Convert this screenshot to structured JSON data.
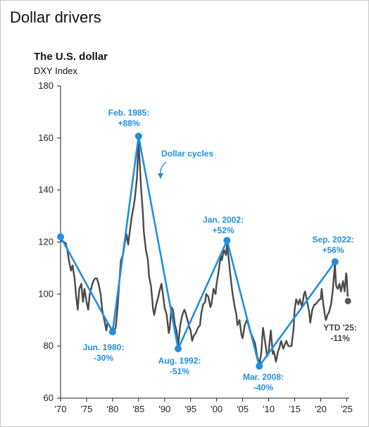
{
  "page_title": "Dollar drivers",
  "chart_data": {
    "type": "line",
    "title": "The U.S. dollar",
    "subtitle": "DXY Index",
    "xlabel": "",
    "ylabel": "",
    "xlim": [
      1970,
      2025.5
    ],
    "ylim": [
      60,
      180
    ],
    "grid": false,
    "y_ticks": [
      60,
      80,
      100,
      120,
      140,
      160,
      180
    ],
    "x_ticks": [
      {
        "value": 1970,
        "label": "'70"
      },
      {
        "value": 1975,
        "label": "'75"
      },
      {
        "value": 1980,
        "label": "'80"
      },
      {
        "value": 1985,
        "label": "'85"
      },
      {
        "value": 1990,
        "label": "'90"
      },
      {
        "value": 1995,
        "label": "'95"
      },
      {
        "value": 2000,
        "label": "'00"
      },
      {
        "value": 2005,
        "label": "'05"
      },
      {
        "value": 2010,
        "label": "'10"
      },
      {
        "value": 2015,
        "label": "'15"
      },
      {
        "value": 2020,
        "label": "'20"
      },
      {
        "value": 2025,
        "label": "'25"
      }
    ],
    "colors": {
      "index": "#4a4a4a",
      "cycles": "#1f8fe0",
      "ytd_marker": "#555555"
    },
    "series": [
      {
        "name": "",
        "color": "#4a4a4a",
        "points": [
          [
            1970.0,
            120.5
          ],
          [
            1970.5,
            120.2
          ],
          [
            1971.0,
            119.5
          ],
          [
            1971.3,
            117.0
          ],
          [
            1971.6,
            113.0
          ],
          [
            1972.0,
            109.0
          ],
          [
            1972.3,
            111.0
          ],
          [
            1972.7,
            106.0
          ],
          [
            1973.0,
            99.0
          ],
          [
            1973.3,
            94.0
          ],
          [
            1973.6,
            102.0
          ],
          [
            1974.0,
            104.0
          ],
          [
            1974.3,
            97.0
          ],
          [
            1974.6,
            102.0
          ],
          [
            1975.0,
            97.0
          ],
          [
            1975.3,
            94.0
          ],
          [
            1975.6,
            100.0
          ],
          [
            1976.0,
            103.0
          ],
          [
            1976.3,
            105.0
          ],
          [
            1976.6,
            106.0
          ],
          [
            1977.0,
            106.0
          ],
          [
            1977.3,
            104.0
          ],
          [
            1977.7,
            100.0
          ],
          [
            1978.0,
            94.0
          ],
          [
            1978.4,
            90.0
          ],
          [
            1978.8,
            86.0
          ],
          [
            1979.0,
            89.0
          ],
          [
            1979.4,
            88.0
          ],
          [
            1979.8,
            86.0
          ],
          [
            1980.0,
            87.0
          ],
          [
            1980.3,
            86.0
          ],
          [
            1980.6,
            87.0
          ],
          [
            1981.0,
            96.0
          ],
          [
            1981.3,
            105.0
          ],
          [
            1981.6,
            113.0
          ],
          [
            1982.0,
            115.0
          ],
          [
            1982.3,
            119.0
          ],
          [
            1982.7,
            123.0
          ],
          [
            1983.0,
            119.0
          ],
          [
            1983.3,
            124.0
          ],
          [
            1983.7,
            130.0
          ],
          [
            1984.0,
            133.0
          ],
          [
            1984.3,
            137.0
          ],
          [
            1984.7,
            145.0
          ],
          [
            1985.0,
            160.0
          ],
          [
            1985.2,
            151.0
          ],
          [
            1985.5,
            140.0
          ],
          [
            1985.8,
            132.0
          ],
          [
            1986.0,
            124.0
          ],
          [
            1986.4,
            117.0
          ],
          [
            1986.8,
            113.0
          ],
          [
            1987.0,
            107.0
          ],
          [
            1987.4,
            103.0
          ],
          [
            1987.8,
            94.0
          ],
          [
            1988.0,
            92.0
          ],
          [
            1988.4,
            96.0
          ],
          [
            1988.8,
            99.0
          ],
          [
            1989.0,
            101.0
          ],
          [
            1989.4,
            104.0
          ],
          [
            1989.8,
            98.0
          ],
          [
            1990.0,
            95.0
          ],
          [
            1990.4,
            92.0
          ],
          [
            1990.8,
            85.0
          ],
          [
            1991.0,
            87.0
          ],
          [
            1991.3,
            95.0
          ],
          [
            1991.6,
            94.0
          ],
          [
            1992.0,
            88.0
          ],
          [
            1992.3,
            86.0
          ],
          [
            1992.6,
            80.0
          ],
          [
            1993.0,
            88.0
          ],
          [
            1993.4,
            92.0
          ],
          [
            1993.8,
            94.0
          ],
          [
            1994.0,
            93.0
          ],
          [
            1994.4,
            90.0
          ],
          [
            1994.8,
            87.0
          ],
          [
            1995.0,
            86.0
          ],
          [
            1995.3,
            82.0
          ],
          [
            1995.6,
            84.0
          ],
          [
            1996.0,
            85.0
          ],
          [
            1996.4,
            87.0
          ],
          [
            1996.8,
            88.0
          ],
          [
            1997.0,
            92.0
          ],
          [
            1997.4,
            96.0
          ],
          [
            1997.8,
            97.0
          ],
          [
            1998.0,
            100.0
          ],
          [
            1998.4,
            99.0
          ],
          [
            1998.8,
            95.0
          ],
          [
            1999.0,
            96.0
          ],
          [
            1999.4,
            102.0
          ],
          [
            1999.8,
            100.0
          ],
          [
            2000.0,
            104.0
          ],
          [
            2000.4,
            109.0
          ],
          [
            2000.8,
            115.0
          ],
          [
            2001.0,
            113.0
          ],
          [
            2001.4,
            117.0
          ],
          [
            2001.8,
            115.0
          ],
          [
            2002.0,
            119.0
          ],
          [
            2002.3,
            114.0
          ],
          [
            2002.6,
            108.0
          ],
          [
            2003.0,
            101.0
          ],
          [
            2003.4,
            96.0
          ],
          [
            2003.8,
            92.0
          ],
          [
            2004.0,
            88.0
          ],
          [
            2004.4,
            90.0
          ],
          [
            2004.8,
            84.0
          ],
          [
            2005.0,
            83.0
          ],
          [
            2005.4,
            88.0
          ],
          [
            2005.8,
            90.0
          ],
          [
            2006.0,
            89.0
          ],
          [
            2006.4,
            86.0
          ],
          [
            2006.8,
            84.0
          ],
          [
            2007.0,
            83.0
          ],
          [
            2007.4,
            81.0
          ],
          [
            2007.8,
            76.0
          ],
          [
            2008.0,
            75.0
          ],
          [
            2008.2,
            72.0
          ],
          [
            2008.6,
            78.0
          ],
          [
            2008.9,
            87.0
          ],
          [
            2009.0,
            86.0
          ],
          [
            2009.3,
            82.0
          ],
          [
            2009.7,
            76.0
          ],
          [
            2010.0,
            78.0
          ],
          [
            2010.4,
            86.0
          ],
          [
            2010.8,
            77.0
          ],
          [
            2011.0,
            78.0
          ],
          [
            2011.4,
            74.0
          ],
          [
            2011.8,
            78.0
          ],
          [
            2012.0,
            79.0
          ],
          [
            2012.4,
            82.0
          ],
          [
            2012.8,
            79.0
          ],
          [
            2013.0,
            80.0
          ],
          [
            2013.4,
            82.0
          ],
          [
            2013.8,
            80.0
          ],
          [
            2014.0,
            80.0
          ],
          [
            2014.4,
            80.0
          ],
          [
            2014.8,
            87.0
          ],
          [
            2015.0,
            94.0
          ],
          [
            2015.3,
            98.0
          ],
          [
            2015.7,
            96.0
          ],
          [
            2016.0,
            98.0
          ],
          [
            2016.4,
            95.0
          ],
          [
            2016.8,
            100.0
          ],
          [
            2017.0,
            101.0
          ],
          [
            2017.4,
            97.0
          ],
          [
            2017.8,
            93.0
          ],
          [
            2018.0,
            89.0
          ],
          [
            2018.4,
            94.0
          ],
          [
            2018.8,
            96.0
          ],
          [
            2019.0,
            96.0
          ],
          [
            2019.4,
            97.0
          ],
          [
            2019.8,
            98.0
          ],
          [
            2020.0,
            98.0
          ],
          [
            2020.2,
            102.0
          ],
          [
            2020.5,
            96.0
          ],
          [
            2020.8,
            92.0
          ],
          [
            2021.0,
            90.0
          ],
          [
            2021.3,
            92.0
          ],
          [
            2021.6,
            93.0
          ],
          [
            2022.0,
            96.0
          ],
          [
            2022.3,
            101.0
          ],
          [
            2022.6,
            108.0
          ],
          [
            2022.75,
            112.0
          ],
          [
            2022.9,
            105.0
          ],
          [
            2023.0,
            103.0
          ],
          [
            2023.3,
            102.0
          ],
          [
            2023.6,
            104.0
          ],
          [
            2023.9,
            101.0
          ],
          [
            2024.0,
            102.0
          ],
          [
            2024.3,
            105.0
          ],
          [
            2024.6,
            101.0
          ],
          [
            2024.9,
            108.0
          ],
          [
            2025.0,
            107.0
          ],
          [
            2025.2,
            99.0
          ]
        ]
      },
      {
        "name": "Dollar cycles",
        "color": "#1f8fe0",
        "points": [
          [
            1970.0,
            122.0
          ],
          [
            1980.0,
            85.5
          ],
          [
            1985.0,
            160.7
          ],
          [
            1992.6,
            79.0
          ],
          [
            2002.0,
            120.6
          ],
          [
            2008.2,
            72.3
          ],
          [
            2022.75,
            112.4
          ]
        ]
      }
    ],
    "ytd_marker": {
      "x": 2025.25,
      "y": 97.3
    },
    "annotations": [
      {
        "lines": [
          "Feb. 1985:",
          "+88%"
        ],
        "color": "blue"
      },
      {
        "lines": [
          "Jun. 1980:",
          "-30%"
        ],
        "color": "blue"
      },
      {
        "lines": [
          "Aug. 1992:",
          "-51%"
        ],
        "color": "blue"
      },
      {
        "lines": [
          "Jan. 2002:",
          "+52%"
        ],
        "color": "blue"
      },
      {
        "lines": [
          "Mar. 2008:",
          "-40%"
        ],
        "color": "blue"
      },
      {
        "lines": [
          "Sep. 2022:",
          "+56%"
        ],
        "color": "blue"
      },
      {
        "lines": [
          "YTD '25:",
          "-11%"
        ],
        "color": "gray"
      },
      {
        "lines": [
          "Dollar cycles"
        ],
        "color": "blue"
      }
    ]
  }
}
